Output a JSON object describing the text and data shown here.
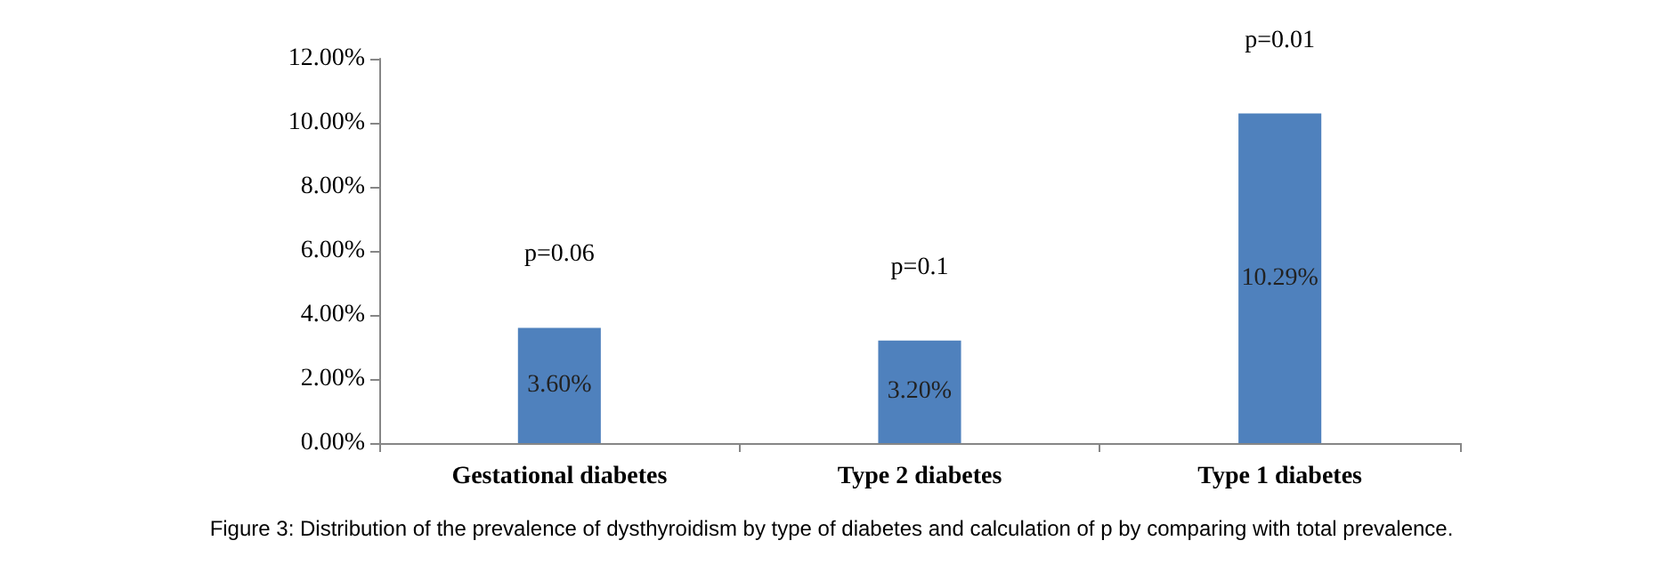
{
  "chart_data": {
    "type": "bar",
    "categories": [
      "Gestational diabetes",
      "Type 2 diabetes",
      "Type 1 diabetes"
    ],
    "values": [
      3.6,
      3.2,
      10.29
    ],
    "color": "#4f81bd",
    "value_labels": [
      "3.60%",
      "3.20%",
      "10.29%"
    ],
    "ylim": [
      0,
      12
    ],
    "yticks": [
      {
        "value": 0,
        "label": "0.00%"
      },
      {
        "value": 2,
        "label": "2.00%"
      },
      {
        "value": 4,
        "label": "4.00%"
      },
      {
        "value": 6,
        "label": "6.00%"
      },
      {
        "value": 8,
        "label": "8.00%"
      },
      {
        "value": 10,
        "label": "10.00%"
      },
      {
        "value": 12,
        "label": "12.00%"
      }
    ],
    "grid": false,
    "annotations": [
      "p=0.06",
      "p=0.1",
      "p=0.01",
      "Figure 3: Distribution of the prevalence of dysthyroidism by type of diabetes and calculation of p by comparing with total prevalence."
    ]
  }
}
